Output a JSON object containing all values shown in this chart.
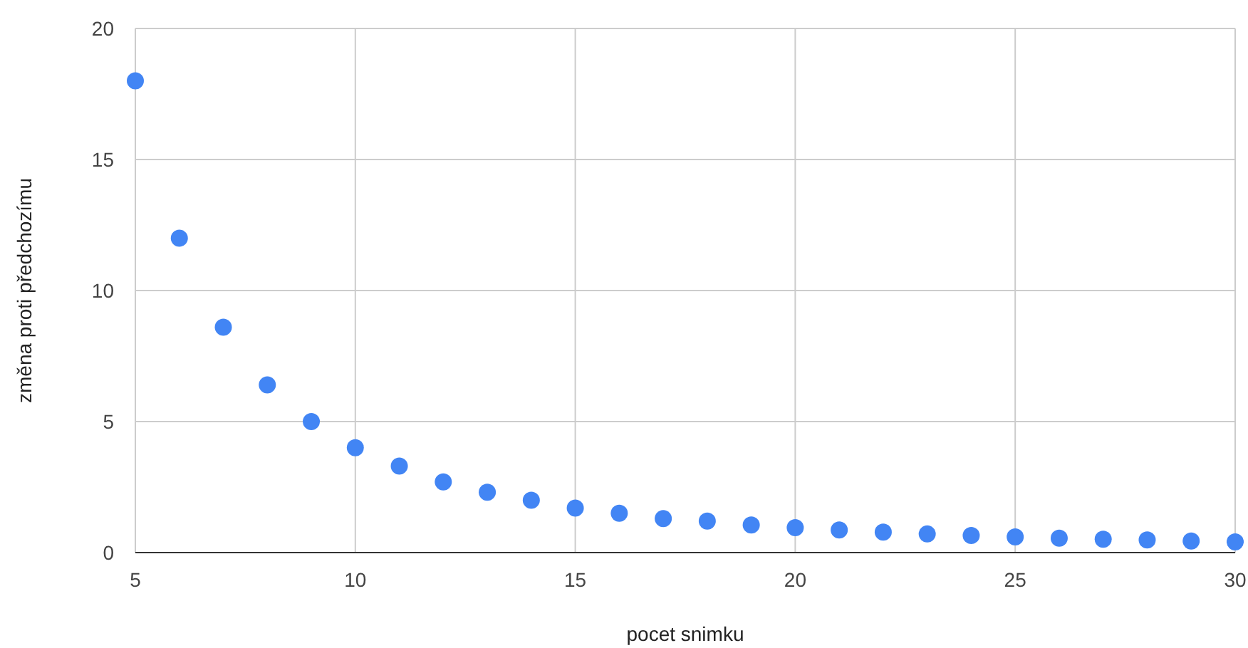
{
  "chart_data": {
    "type": "scatter",
    "xlabel": "pocet snimku",
    "ylabel": "změna proti předchozímu",
    "x": [
      5,
      6,
      7,
      8,
      9,
      10,
      11,
      12,
      13,
      14,
      15,
      16,
      17,
      18,
      19,
      20,
      21,
      22,
      23,
      24,
      25,
      26,
      27,
      28,
      29,
      30
    ],
    "series": [
      {
        "color": "#4285f4",
        "values": [
          18,
          12,
          8.6,
          6.4,
          5,
          4,
          3.3,
          2.7,
          2.3,
          2,
          1.7,
          1.5,
          1.3,
          1.2,
          1.05,
          0.95,
          0.86,
          0.78,
          0.71,
          0.65,
          0.6,
          0.55,
          0.51,
          0.48,
          0.44,
          0.41
        ]
      }
    ],
    "xlim": [
      5,
      30
    ],
    "xticks": [
      5,
      10,
      15,
      20,
      25,
      30
    ],
    "ylim": [
      0,
      20
    ],
    "yticks": [
      0,
      5,
      10,
      15,
      20
    ],
    "grid": true,
    "marker": "circle"
  }
}
